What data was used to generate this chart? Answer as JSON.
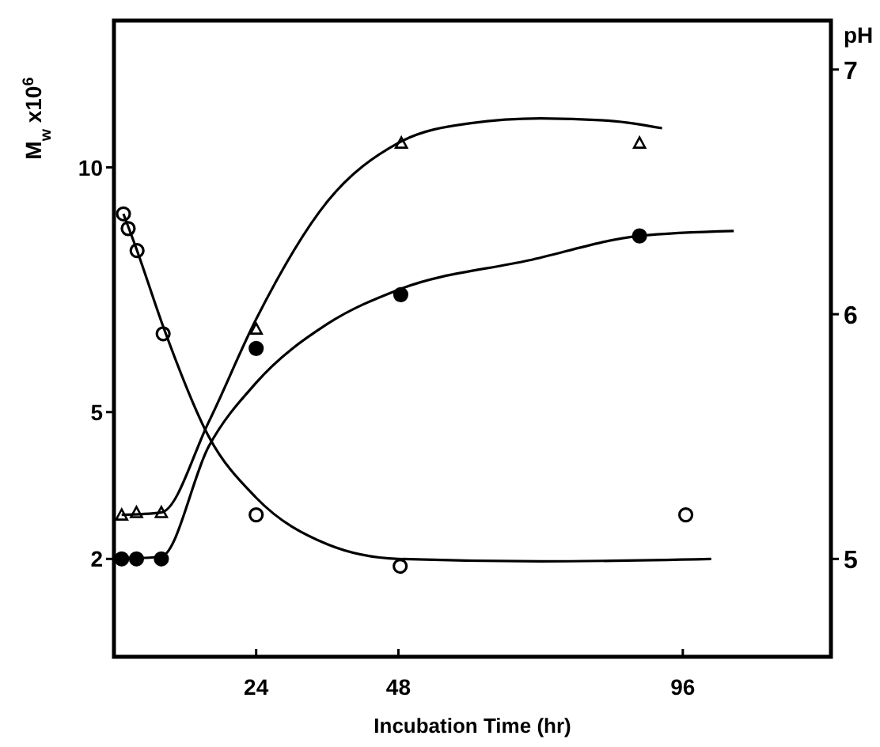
{
  "chart_data": {
    "type": "scatter",
    "xlabel": "Incubation Time (hr)",
    "ylabel": "M$_{w}$ x10$^{6}$",
    "y2label": "pH",
    "xlim": [
      0,
      121
    ],
    "xticks": [
      24,
      48,
      96
    ],
    "ylim": [
      0,
      13
    ],
    "yticks": [
      2,
      5,
      10
    ],
    "y2lim": [
      4.6,
      7.2
    ],
    "y2ticks": [
      5,
      6,
      7
    ],
    "grid": false,
    "series": [
      {
        "marker": "circle",
        "color": "#000000",
        "x": [
          1.3,
          3.8,
          8,
          24,
          48.4,
          88.7
        ],
        "values": [
          2.0,
          2.0,
          2.0,
          6.3,
          7.4,
          8.6
        ]
      },
      {
        "marker": "triangle",
        "color": "#ffffff",
        "x": [
          1.3,
          3.8,
          8,
          24,
          48.5,
          88.7
        ],
        "values": [
          2.9,
          2.95,
          2.95,
          6.7,
          10.5,
          10.5
        ]
      },
      {
        "marker": "circle",
        "color": "#ffffff",
        "axis": "y2",
        "x": [
          1.6,
          2.4,
          3.9,
          8.3,
          24,
          48.3,
          96.5
        ],
        "values": [
          6.41,
          6.35,
          6.26,
          5.92,
          5.18,
          4.97,
          5.18
        ]
      },
      {
        "type": "line",
        "marker": "none",
        "line_style": "solid",
        "color": "#000000",
        "x": [
          1.3,
          8,
          16,
          24,
          36,
          48,
          60,
          72,
          84,
          92.5
        ],
        "values": [
          2.9,
          2.95,
          4.8,
          6.9,
          9.3,
          10.5,
          10.9,
          11.0,
          10.95,
          10.8
        ]
      },
      {
        "type": "line",
        "marker": "none",
        "line_style": "solid",
        "color": "#000000",
        "x": [
          1.3,
          8,
          16,
          24,
          36,
          48,
          70,
          88.7,
          104.6
        ],
        "values": [
          2.0,
          2.05,
          4.3,
          5.6,
          6.8,
          7.5,
          8.1,
          8.6,
          8.7
        ]
      },
      {
        "type": "line",
        "marker": "none",
        "line_style": "solid",
        "color": "#000000",
        "axis": "y2",
        "x": [
          1.6,
          3.9,
          8.3,
          16,
          24,
          36,
          48,
          72,
          100.8
        ],
        "values": [
          6.41,
          6.26,
          5.95,
          5.5,
          5.25,
          5.06,
          5.0,
          4.99,
          5.0
        ]
      }
    ]
  }
}
